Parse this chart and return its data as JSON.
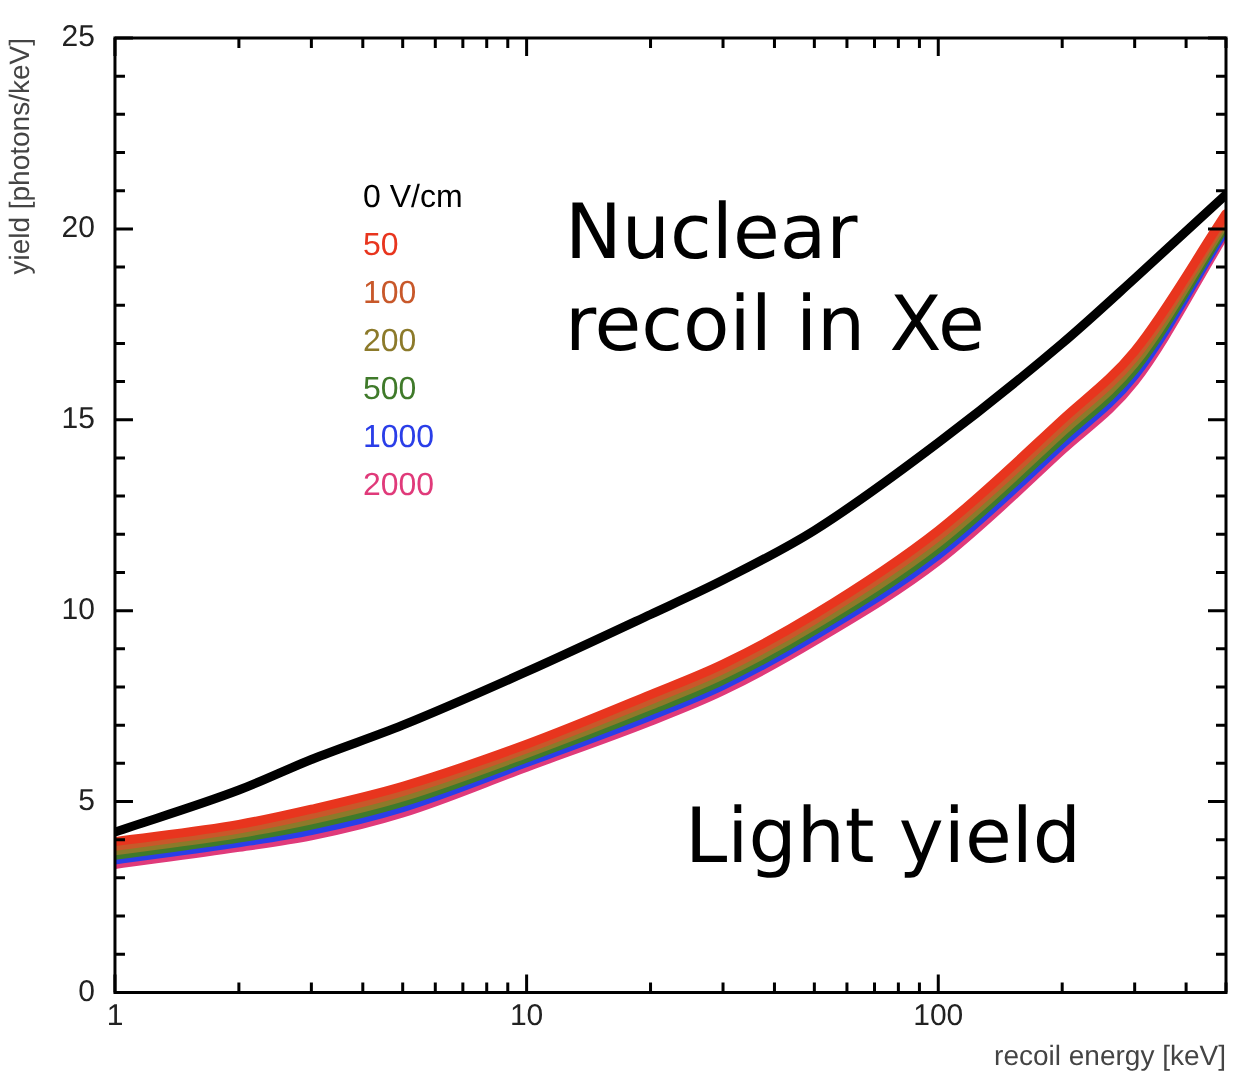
{
  "chart_data": {
    "type": "line",
    "xlabel": "recoil energy [keV]",
    "ylabel": "yield [photons/keV]",
    "log": "x",
    "grid": false,
    "legend": "top left",
    "marker": "none",
    "line_style": "solid",
    "x": [
      1,
      2,
      3,
      5,
      10,
      20,
      30,
      50,
      100,
      200,
      300,
      500
    ],
    "xlim": [
      1,
      500
    ],
    "ylim": [
      0,
      25
    ],
    "xticks": [
      1,
      {
        "value": 2,
        "label": null
      },
      {
        "value": 3,
        "label": null
      },
      {
        "value": 4,
        "label": null
      },
      {
        "value": 5,
        "label": null
      },
      {
        "value": 6,
        "label": null
      },
      {
        "value": 7,
        "label": null
      },
      {
        "value": 8,
        "label": null
      },
      {
        "value": 9,
        "label": null
      },
      10,
      {
        "value": 20,
        "label": null
      },
      {
        "value": 30,
        "label": null
      },
      {
        "value": 40,
        "label": null
      },
      {
        "value": 50,
        "label": null
      },
      {
        "value": 60,
        "label": null
      },
      {
        "value": 70,
        "label": null
      },
      {
        "value": 80,
        "label": null
      },
      {
        "value": 90,
        "label": null
      },
      100,
      {
        "value": 200,
        "label": null
      },
      {
        "value": 300,
        "label": null
      },
      {
        "value": 400,
        "label": null
      },
      {
        "value": 500,
        "label": null
      }
    ],
    "yticks": [
      0,
      {
        "value": 1,
        "label": null
      },
      {
        "value": 2,
        "label": null
      },
      {
        "value": 3,
        "label": null
      },
      {
        "value": 4,
        "label": null
      },
      5,
      {
        "value": 6,
        "label": null
      },
      {
        "value": 7,
        "label": null
      },
      {
        "value": 8,
        "label": null
      },
      {
        "value": 9,
        "label": null
      },
      10,
      {
        "value": 11,
        "label": null
      },
      {
        "value": 12,
        "label": null
      },
      {
        "value": 13,
        "label": null
      },
      {
        "value": 14,
        "label": null
      },
      15,
      {
        "value": 16,
        "label": null
      },
      {
        "value": 17,
        "label": null
      },
      {
        "value": 18,
        "label": null
      },
      {
        "value": 19,
        "label": null
      },
      20,
      {
        "value": 21,
        "label": null
      },
      {
        "value": 22,
        "label": null
      },
      {
        "value": 23,
        "label": null
      },
      {
        "value": 24,
        "label": null
      },
      25
    ],
    "series": [
      {
        "name": "0 V/cm",
        "color": "#000000",
        "values": [
          4.2,
          5.3,
          6.1,
          7.0,
          8.4,
          9.9,
          10.8,
          12.1,
          14.4,
          17.0,
          18.7,
          20.9
        ]
      },
      {
        "name": "50",
        "color": "#e8351e",
        "values": [
          3.95,
          4.4,
          4.8,
          5.4,
          6.5,
          7.8,
          8.6,
          9.9,
          12.1,
          15.0,
          16.8,
          20.4
        ]
      },
      {
        "name": "100",
        "color": "#c8582a",
        "values": [
          3.83,
          4.28,
          4.66,
          5.26,
          6.38,
          7.66,
          8.46,
          9.76,
          11.94,
          14.84,
          16.64,
          20.3
        ]
      },
      {
        "name": "200",
        "color": "#8c7a2a",
        "values": [
          3.71,
          4.16,
          4.52,
          5.12,
          6.26,
          7.52,
          8.32,
          9.62,
          11.78,
          14.68,
          16.48,
          20.2
        ]
      },
      {
        "name": "500",
        "color": "#3f7a2a",
        "values": [
          3.59,
          4.04,
          4.38,
          4.98,
          6.14,
          7.38,
          8.18,
          9.48,
          11.62,
          14.52,
          16.32,
          20.1
        ]
      },
      {
        "name": "1000",
        "color": "#2a3ee8",
        "values": [
          3.47,
          3.92,
          4.24,
          4.84,
          6.02,
          7.24,
          8.04,
          9.34,
          11.46,
          14.36,
          16.16,
          20.0
        ]
      },
      {
        "name": "2000",
        "color": "#e03a7a",
        "values": [
          3.35,
          3.8,
          4.1,
          4.7,
          5.9,
          7.1,
          7.9,
          9.2,
          11.3,
          14.2,
          16.0,
          19.9
        ]
      }
    ],
    "annotations": [
      "Nuclear recoil in Xe",
      "Light yield"
    ]
  }
}
